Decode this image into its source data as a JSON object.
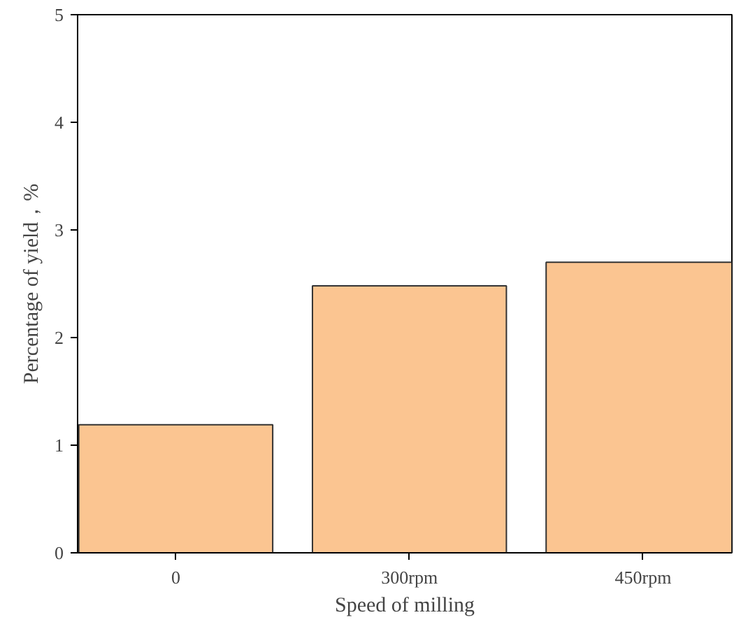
{
  "chart_data": {
    "type": "bar",
    "xlabel": "Speed of milling",
    "ylabel": "Percentage of yield，%",
    "categories": [
      "0",
      "300rpm",
      "450rpm"
    ],
    "values": [
      1.19,
      2.48,
      2.7
    ],
    "color": "#fbc591",
    "ylim": [
      0,
      5
    ],
    "yticks": [
      0,
      1,
      2,
      3,
      4,
      5
    ],
    "grid": false
  }
}
